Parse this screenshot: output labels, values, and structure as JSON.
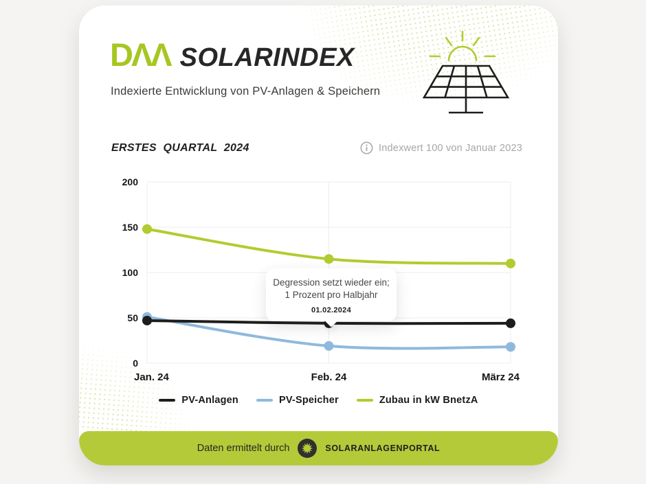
{
  "brand": {
    "logo_text": "DΛΛ",
    "title": "SOLARINDEX",
    "subtitle": "Indexierte Entwicklung von PV-Anlagen & Speichern"
  },
  "section": {
    "heading": "ERSTES QUARTAL 2024",
    "index_note": "Indexwert 100 von Januar 2023"
  },
  "tooltip": {
    "line1": "Degression setzt wieder ein;",
    "line2": "1 Prozent pro Halbjahr",
    "date": "01.02.2024"
  },
  "footer": {
    "text": "Daten ermittelt durch",
    "brand": "SOLARANLAGENPORTAL"
  },
  "colors": {
    "logo_green": "#a6c621",
    "accent_green": "#b2cb30",
    "footer_green": "#b5ca39",
    "line_black": "#1d1d1b",
    "line_blue": "#8fb9dc",
    "grid_gray": "#ececec",
    "info_gray": "#a6a6a6"
  },
  "chart_data": {
    "type": "line",
    "title": "ERSTES QUARTAL 2024",
    "x": [
      "Jan. 24",
      "Feb. 24",
      "März 24"
    ],
    "series": [
      {
        "name": "PV-Anlagen",
        "color": "#1d1d1b",
        "values": [
          47,
          44,
          44
        ]
      },
      {
        "name": "PV-Speicher",
        "color": "#8fb9dc",
        "values": [
          51,
          19,
          18
        ]
      },
      {
        "name": "Zubau in kW BnetzA",
        "color": "#b2cb30",
        "values": [
          148,
          115,
          110
        ]
      }
    ],
    "ylim": [
      0,
      200
    ],
    "yticks": [
      0,
      50,
      100,
      150,
      200
    ],
    "grid": true,
    "legend_position": "bottom",
    "annotation": {
      "text": "Degression setzt wieder ein; 1 Prozent pro Halbjahr",
      "date": "01.02.2024",
      "x": "Feb. 24",
      "series": "PV-Anlagen"
    }
  }
}
